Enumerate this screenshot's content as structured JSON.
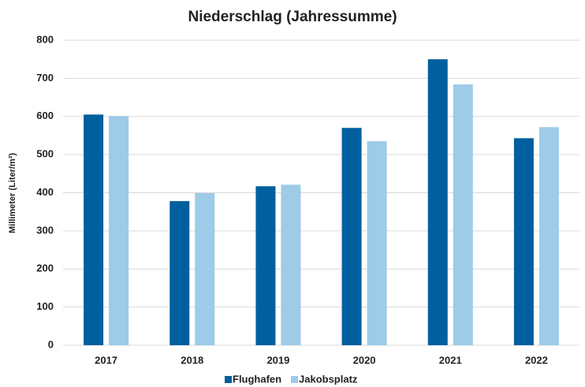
{
  "chart_data": {
    "type": "bar",
    "title": "Niederschlag (Jahressumme)",
    "y_label": "Millimeter (Liter/m²)",
    "categories": [
      "2017",
      "2018",
      "2019",
      "2020",
      "2021",
      "2022"
    ],
    "series": [
      {
        "name": "Flughafen",
        "color": "#005f9e",
        "values": [
          605,
          378,
          417,
          570,
          750,
          543
        ]
      },
      {
        "name": "Jakobsplatz",
        "color": "#9dcbe8",
        "values": [
          601,
          399,
          421,
          535,
          684,
          572
        ]
      }
    ],
    "ylim": [
      0,
      800
    ],
    "yticks": [
      0,
      100,
      200,
      300,
      400,
      500,
      600,
      700,
      800
    ],
    "grid": true,
    "legend": "bottom"
  }
}
